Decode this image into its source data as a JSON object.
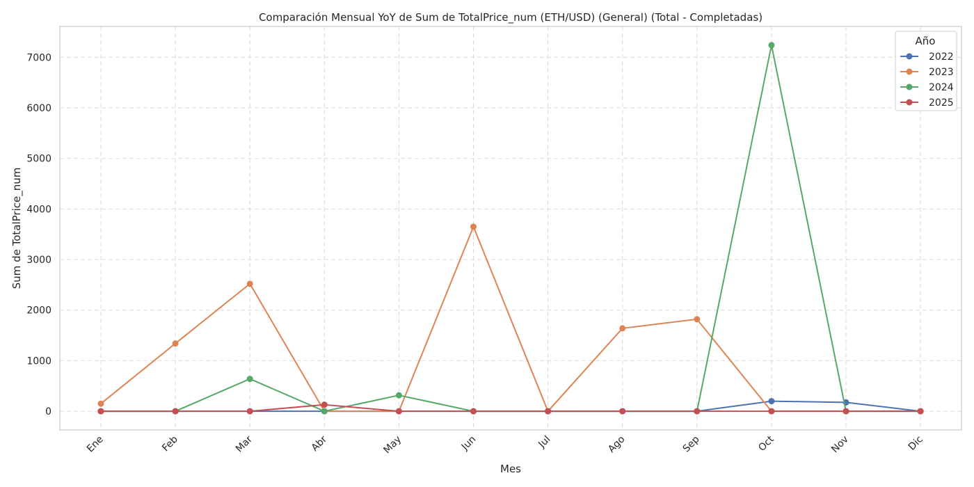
{
  "chart_data": {
    "type": "line",
    "title": "Comparación Mensual YoY de Sum de TotalPrice_num (ETH/USD) (General) (Total - Completadas)",
    "xlabel": "Mes",
    "ylabel": "Sum de TotalPrice_num",
    "categories": [
      "Ene",
      "Feb",
      "Mar",
      "Abr",
      "May",
      "Jun",
      "Jul",
      "Ago",
      "Sep",
      "Oct",
      "Nov",
      "Dic"
    ],
    "ylim": [
      -370,
      7610
    ],
    "yticks": [
      0,
      1000,
      2000,
      3000,
      4000,
      5000,
      6000,
      7000
    ],
    "grid": true,
    "legend": {
      "title": "Año",
      "placement": "top-right"
    },
    "series": [
      {
        "name": "2022",
        "color": "#4c72b0",
        "values": [
          0,
          0,
          0,
          0,
          0,
          0,
          0,
          0,
          0,
          200,
          175,
          0
        ]
      },
      {
        "name": "2023",
        "color": "#dd8452",
        "values": [
          150,
          1340,
          2520,
          0,
          0,
          3650,
          0,
          1640,
          1820,
          0,
          0,
          0
        ]
      },
      {
        "name": "2024",
        "color": "#55a868",
        "values": [
          0,
          0,
          640,
          0,
          315,
          0,
          0,
          0,
          0,
          7240,
          0,
          0
        ]
      },
      {
        "name": "2025",
        "color": "#c44e52",
        "values": [
          0,
          0,
          0,
          130,
          0,
          0,
          0,
          0,
          0,
          0,
          0,
          0
        ]
      }
    ]
  }
}
